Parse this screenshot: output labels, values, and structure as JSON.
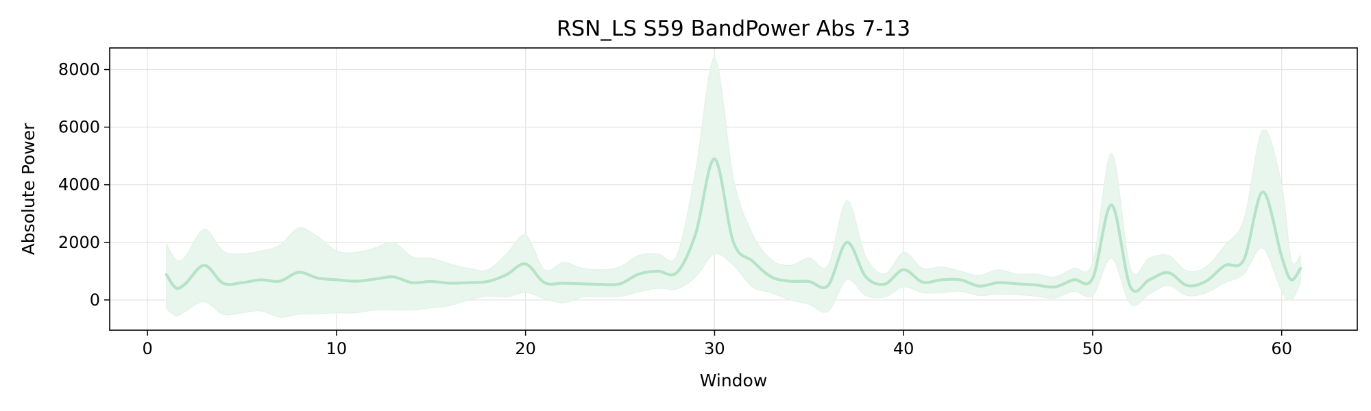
{
  "chart_data": {
    "type": "line",
    "title": "RSN_LS S59 BandPower Abs 7-13",
    "xlabel": "Window",
    "ylabel": "Absolute Power",
    "xlim": [
      -2,
      64
    ],
    "ylim": [
      -1050,
      8750
    ],
    "xticks": [
      0,
      10,
      20,
      30,
      40,
      50,
      60
    ],
    "yticks": [
      0,
      2000,
      4000,
      6000,
      8000
    ],
    "grid": true,
    "legend": "none",
    "line_color": "#b5e3c6",
    "band_color": "#e9f6ed",
    "series": [
      {
        "x": [
          1,
          1.5,
          2,
          3,
          4,
          5,
          6,
          7,
          8,
          9,
          10,
          11,
          12,
          13,
          14,
          15,
          16,
          17,
          18,
          19,
          20,
          21,
          22,
          23,
          24,
          25,
          26,
          27,
          28,
          29,
          30,
          31,
          32,
          33,
          34,
          35,
          36,
          37,
          38,
          39,
          40,
          41,
          42,
          43,
          44,
          45,
          46,
          47,
          48,
          49,
          50,
          51,
          52,
          53,
          54,
          55,
          56,
          57,
          58,
          59,
          60,
          60.5,
          61
        ],
        "mean": [
          880,
          420,
          560,
          1200,
          580,
          600,
          700,
          650,
          960,
          760,
          700,
          650,
          720,
          800,
          600,
          640,
          580,
          600,
          640,
          880,
          1250,
          600,
          580,
          560,
          540,
          560,
          900,
          1000,
          950,
          2300,
          4900,
          2000,
          1350,
          800,
          650,
          640,
          500,
          2000,
          800,
          550,
          1050,
          620,
          700,
          700,
          480,
          600,
          560,
          520,
          450,
          700,
          750,
          3300,
          450,
          700,
          950,
          500,
          650,
          1200,
          1400,
          3750,
          1500,
          700,
          1100
        ],
        "upper": [
          1950,
          1400,
          1500,
          2450,
          1700,
          1600,
          1700,
          1900,
          2500,
          2200,
          1700,
          1650,
          1800,
          2000,
          1500,
          1450,
          1250,
          1100,
          1050,
          1600,
          2250,
          1050,
          1300,
          1100,
          1050,
          1150,
          1550,
          1600,
          1550,
          4500,
          8400,
          4200,
          2300,
          1400,
          1200,
          1450,
          1200,
          3450,
          1500,
          900,
          1650,
          1100,
          1150,
          1000,
          850,
          1050,
          900,
          900,
          800,
          1100,
          1300,
          5100,
          1100,
          1450,
          1550,
          1000,
          1150,
          1900,
          2800,
          5900,
          4000,
          1400,
          1550
        ],
        "lower": [
          -300,
          -550,
          -400,
          -60,
          -500,
          -450,
          -380,
          -600,
          -500,
          -480,
          -450,
          -450,
          -350,
          -350,
          -350,
          -280,
          -200,
          0,
          130,
          100,
          260,
          50,
          -100,
          100,
          100,
          120,
          280,
          400,
          380,
          800,
          1600,
          1200,
          450,
          250,
          0,
          -150,
          -400,
          700,
          150,
          100,
          450,
          250,
          250,
          300,
          150,
          200,
          180,
          130,
          60,
          300,
          150,
          1450,
          -150,
          200,
          500,
          150,
          250,
          600,
          900,
          1800,
          300,
          0,
          600
        ]
      }
    ]
  }
}
